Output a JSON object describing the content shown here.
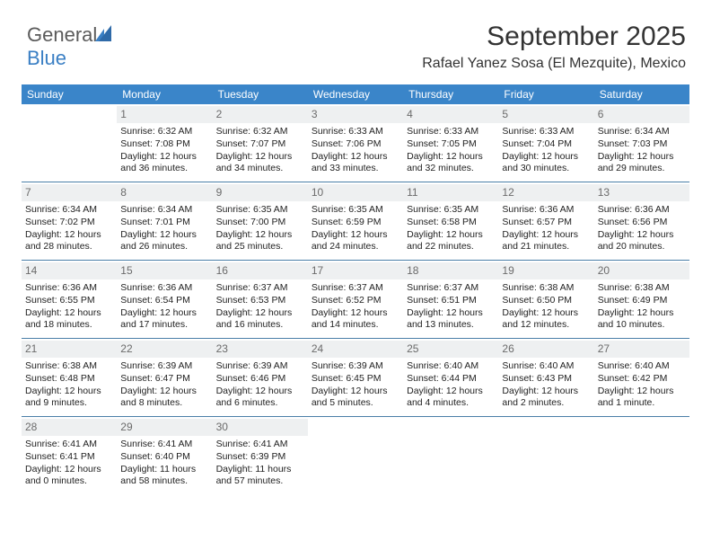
{
  "logo": {
    "part1": "General",
    "part2": "Blue"
  },
  "title": "September 2025",
  "location": "Rafael Yanez Sosa (El Mezquite), Mexico",
  "colors": {
    "header_bg": "#3a85c9",
    "header_text": "#ffffff",
    "daynum_bg": "#eef0f1",
    "daynum_text": "#6b6b6b",
    "rule": "#4a7fa8",
    "logo_gray": "#5a5a5a",
    "logo_blue": "#3a7fc4"
  },
  "dow": [
    "Sunday",
    "Monday",
    "Tuesday",
    "Wednesday",
    "Thursday",
    "Friday",
    "Saturday"
  ],
  "weeks": [
    [
      {
        "n": "",
        "sr": "",
        "ss": "",
        "dl": ""
      },
      {
        "n": "1",
        "sr": "Sunrise: 6:32 AM",
        "ss": "Sunset: 7:08 PM",
        "dl": "Daylight: 12 hours and 36 minutes."
      },
      {
        "n": "2",
        "sr": "Sunrise: 6:32 AM",
        "ss": "Sunset: 7:07 PM",
        "dl": "Daylight: 12 hours and 34 minutes."
      },
      {
        "n": "3",
        "sr": "Sunrise: 6:33 AM",
        "ss": "Sunset: 7:06 PM",
        "dl": "Daylight: 12 hours and 33 minutes."
      },
      {
        "n": "4",
        "sr": "Sunrise: 6:33 AM",
        "ss": "Sunset: 7:05 PM",
        "dl": "Daylight: 12 hours and 32 minutes."
      },
      {
        "n": "5",
        "sr": "Sunrise: 6:33 AM",
        "ss": "Sunset: 7:04 PM",
        "dl": "Daylight: 12 hours and 30 minutes."
      },
      {
        "n": "6",
        "sr": "Sunrise: 6:34 AM",
        "ss": "Sunset: 7:03 PM",
        "dl": "Daylight: 12 hours and 29 minutes."
      }
    ],
    [
      {
        "n": "7",
        "sr": "Sunrise: 6:34 AM",
        "ss": "Sunset: 7:02 PM",
        "dl": "Daylight: 12 hours and 28 minutes."
      },
      {
        "n": "8",
        "sr": "Sunrise: 6:34 AM",
        "ss": "Sunset: 7:01 PM",
        "dl": "Daylight: 12 hours and 26 minutes."
      },
      {
        "n": "9",
        "sr": "Sunrise: 6:35 AM",
        "ss": "Sunset: 7:00 PM",
        "dl": "Daylight: 12 hours and 25 minutes."
      },
      {
        "n": "10",
        "sr": "Sunrise: 6:35 AM",
        "ss": "Sunset: 6:59 PM",
        "dl": "Daylight: 12 hours and 24 minutes."
      },
      {
        "n": "11",
        "sr": "Sunrise: 6:35 AM",
        "ss": "Sunset: 6:58 PM",
        "dl": "Daylight: 12 hours and 22 minutes."
      },
      {
        "n": "12",
        "sr": "Sunrise: 6:36 AM",
        "ss": "Sunset: 6:57 PM",
        "dl": "Daylight: 12 hours and 21 minutes."
      },
      {
        "n": "13",
        "sr": "Sunrise: 6:36 AM",
        "ss": "Sunset: 6:56 PM",
        "dl": "Daylight: 12 hours and 20 minutes."
      }
    ],
    [
      {
        "n": "14",
        "sr": "Sunrise: 6:36 AM",
        "ss": "Sunset: 6:55 PM",
        "dl": "Daylight: 12 hours and 18 minutes."
      },
      {
        "n": "15",
        "sr": "Sunrise: 6:36 AM",
        "ss": "Sunset: 6:54 PM",
        "dl": "Daylight: 12 hours and 17 minutes."
      },
      {
        "n": "16",
        "sr": "Sunrise: 6:37 AM",
        "ss": "Sunset: 6:53 PM",
        "dl": "Daylight: 12 hours and 16 minutes."
      },
      {
        "n": "17",
        "sr": "Sunrise: 6:37 AM",
        "ss": "Sunset: 6:52 PM",
        "dl": "Daylight: 12 hours and 14 minutes."
      },
      {
        "n": "18",
        "sr": "Sunrise: 6:37 AM",
        "ss": "Sunset: 6:51 PM",
        "dl": "Daylight: 12 hours and 13 minutes."
      },
      {
        "n": "19",
        "sr": "Sunrise: 6:38 AM",
        "ss": "Sunset: 6:50 PM",
        "dl": "Daylight: 12 hours and 12 minutes."
      },
      {
        "n": "20",
        "sr": "Sunrise: 6:38 AM",
        "ss": "Sunset: 6:49 PM",
        "dl": "Daylight: 12 hours and 10 minutes."
      }
    ],
    [
      {
        "n": "21",
        "sr": "Sunrise: 6:38 AM",
        "ss": "Sunset: 6:48 PM",
        "dl": "Daylight: 12 hours and 9 minutes."
      },
      {
        "n": "22",
        "sr": "Sunrise: 6:39 AM",
        "ss": "Sunset: 6:47 PM",
        "dl": "Daylight: 12 hours and 8 minutes."
      },
      {
        "n": "23",
        "sr": "Sunrise: 6:39 AM",
        "ss": "Sunset: 6:46 PM",
        "dl": "Daylight: 12 hours and 6 minutes."
      },
      {
        "n": "24",
        "sr": "Sunrise: 6:39 AM",
        "ss": "Sunset: 6:45 PM",
        "dl": "Daylight: 12 hours and 5 minutes."
      },
      {
        "n": "25",
        "sr": "Sunrise: 6:40 AM",
        "ss": "Sunset: 6:44 PM",
        "dl": "Daylight: 12 hours and 4 minutes."
      },
      {
        "n": "26",
        "sr": "Sunrise: 6:40 AM",
        "ss": "Sunset: 6:43 PM",
        "dl": "Daylight: 12 hours and 2 minutes."
      },
      {
        "n": "27",
        "sr": "Sunrise: 6:40 AM",
        "ss": "Sunset: 6:42 PM",
        "dl": "Daylight: 12 hours and 1 minute."
      }
    ],
    [
      {
        "n": "28",
        "sr": "Sunrise: 6:41 AM",
        "ss": "Sunset: 6:41 PM",
        "dl": "Daylight: 12 hours and 0 minutes."
      },
      {
        "n": "29",
        "sr": "Sunrise: 6:41 AM",
        "ss": "Sunset: 6:40 PM",
        "dl": "Daylight: 11 hours and 58 minutes."
      },
      {
        "n": "30",
        "sr": "Sunrise: 6:41 AM",
        "ss": "Sunset: 6:39 PM",
        "dl": "Daylight: 11 hours and 57 minutes."
      },
      {
        "n": "",
        "sr": "",
        "ss": "",
        "dl": ""
      },
      {
        "n": "",
        "sr": "",
        "ss": "",
        "dl": ""
      },
      {
        "n": "",
        "sr": "",
        "ss": "",
        "dl": ""
      },
      {
        "n": "",
        "sr": "",
        "ss": "",
        "dl": ""
      }
    ]
  ]
}
